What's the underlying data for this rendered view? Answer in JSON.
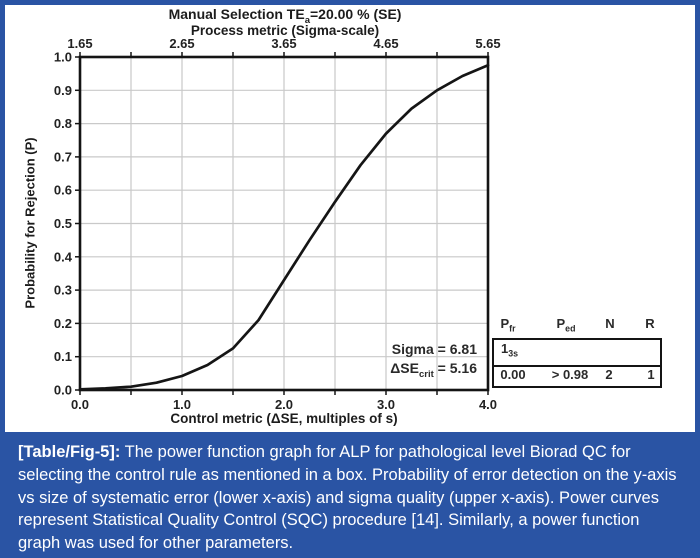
{
  "theme": {
    "accent_blue": "#2a54a4",
    "grid_color": "#c9c9c9",
    "axis_color": "#141414",
    "curve_color": "#151515"
  },
  "header": {
    "title_pre": "Manual Selection  TE",
    "title_sub": "a",
    "title_post": "=20.00 % (SE)",
    "subtitle": "Process metric (Sigma-scale)"
  },
  "y_axis_label": "Probability for Rejection (P)",
  "x_axis_label": "Control metric (ΔSE, multiples of s)",
  "annotation": {
    "line1_label": "Sigma",
    "line1_eq": " = ",
    "line1_value": "6.81",
    "line2_label": "ΔSE",
    "line2_sub": "crit",
    "line2_eq": " = ",
    "line2_value": "5.16"
  },
  "rule_table": {
    "headers": [
      {
        "main": "P",
        "sub": "fr"
      },
      {
        "main": "P",
        "sub": "ed"
      },
      {
        "main": "N",
        "sub": ""
      },
      {
        "main": "R",
        "sub": ""
      }
    ],
    "rule_main": "1",
    "rule_sub": "3s",
    "values": [
      "0.00",
      "> 0.98",
      "2",
      "1"
    ]
  },
  "caption": {
    "tag": "[Table/Fig-5]:",
    "body": " The power function graph for ALP for pathological level Biorad QC for selecting the control rule as mentioned in a box. Probability of error detection on the y-axis vs size of systematic error (lower x-axis) and sigma quality (upper x-axis). Power curves represent Statistical Quality Control (SQC) procedure [14]. Similarly, a power function graph was used for other parameters."
  },
  "chart_data": {
    "type": "line",
    "title": "Manual Selection TEa=20.00 % (SE)",
    "top_axis": {
      "label": "Process metric (Sigma-scale)",
      "range": [
        1.65,
        5.65
      ],
      "major_ticks": [
        1.65,
        2.65,
        3.65,
        4.65,
        5.65
      ],
      "tick_labels": [
        "1.65",
        "2.65",
        "3.65",
        "4.65",
        "5.65"
      ],
      "minor_step": 0.5
    },
    "x_axis": {
      "label": "Control metric (ΔSE, multiples of s)",
      "range": [
        0,
        4
      ],
      "major_ticks": [
        0,
        1,
        2,
        3,
        4
      ],
      "tick_labels": [
        "0.0",
        "1.0",
        "2.0",
        "3.0",
        "4.0"
      ],
      "minor_step": 0.5
    },
    "y_axis": {
      "label": "Probability for Rejection (P)",
      "range": [
        0,
        1
      ],
      "major_ticks": [
        0,
        0.1,
        0.2,
        0.3,
        0.4,
        0.5,
        0.6,
        0.7,
        0.8,
        0.9,
        1.0
      ],
      "tick_labels": [
        "0.0",
        "0.1",
        "0.2",
        "0.3",
        "0.4",
        "0.5",
        "0.6",
        "0.7",
        "0.8",
        "0.9",
        "1.0"
      ]
    },
    "grid": {
      "on": true,
      "x_step": 0.5,
      "y_step": 0.1
    },
    "series": [
      {
        "name": "13s control rule (N=2, R=1)",
        "x": [
          0,
          0.25,
          0.5,
          0.75,
          1.0,
          1.25,
          1.5,
          1.75,
          2.0,
          2.25,
          2.5,
          2.75,
          3.0,
          3.25,
          3.5,
          3.75,
          4.0
        ],
        "y": [
          0.002,
          0.005,
          0.01,
          0.022,
          0.042,
          0.075,
          0.125,
          0.21,
          0.33,
          0.45,
          0.565,
          0.675,
          0.77,
          0.845,
          0.9,
          0.943,
          0.975
        ]
      }
    ],
    "annotations": [
      "Sigma = 6.81",
      "ΔSEcrit = 5.16"
    ],
    "legend_table": {
      "headers": [
        "Pfr",
        "Ped",
        "N",
        "R"
      ],
      "rows": [
        [
          "13s",
          "0.00",
          "> 0.98",
          "2",
          "1"
        ]
      ]
    },
    "legend_position": "right-bottom-outside"
  }
}
